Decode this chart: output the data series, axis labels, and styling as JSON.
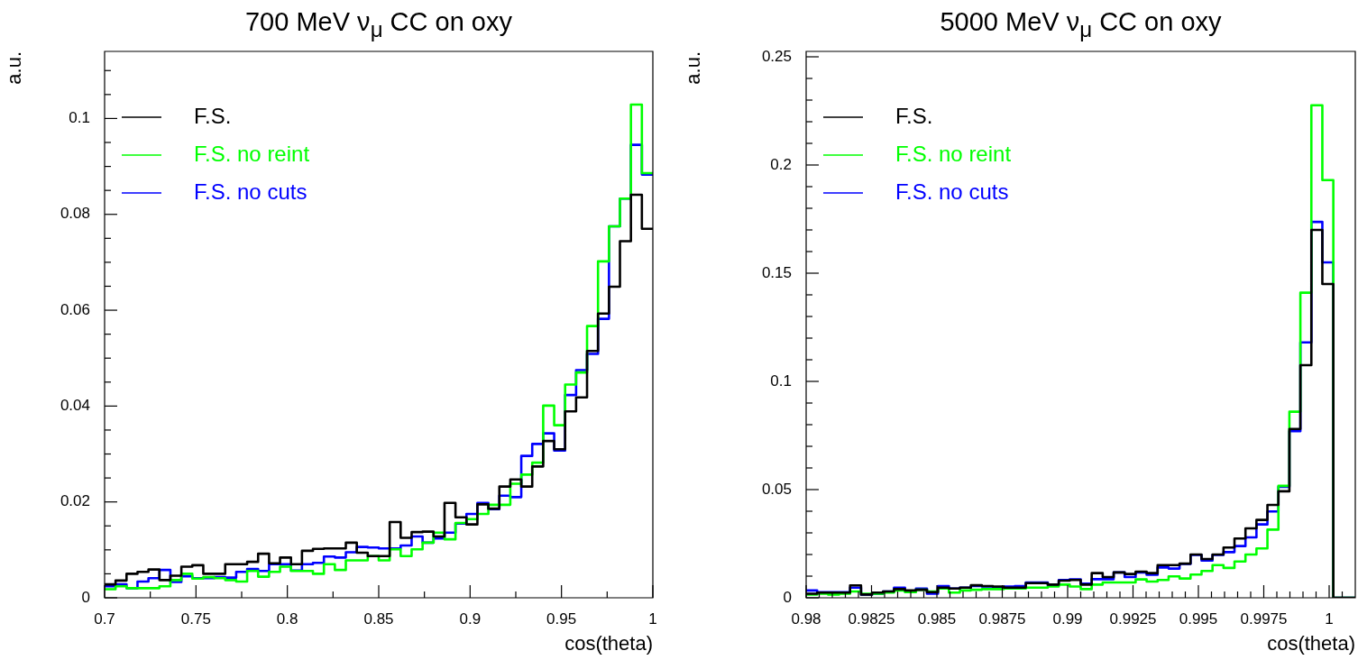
{
  "chart_data": [
    {
      "type": "histogram",
      "title": "700 MeV ν$_{μ}$ CC on oxy",
      "xlabel": "cos(theta)",
      "ylabel": "a.u.",
      "legend": "top left",
      "bins": [
        0.7,
        0.706,
        0.712,
        0.718,
        0.724,
        0.73,
        0.736,
        0.742,
        0.748,
        0.754,
        0.76,
        0.766,
        0.772,
        0.778,
        0.784,
        0.79,
        0.796,
        0.802,
        0.808,
        0.814,
        0.82,
        0.826,
        0.832,
        0.838,
        0.844,
        0.85,
        0.856,
        0.862,
        0.868,
        0.874,
        0.88,
        0.886,
        0.892,
        0.898,
        0.904,
        0.91,
        0.916,
        0.922,
        0.928,
        0.934,
        0.94,
        0.946,
        0.952,
        0.958,
        0.964,
        0.97,
        0.976,
        0.982,
        0.988,
        0.994,
        1
      ],
      "series": [
        {
          "name": "F.S.",
          "color": "#000000",
          "values": [
            0.0028,
            0.0036,
            0.005,
            0.0054,
            0.0059,
            0.0037,
            0.0046,
            0.0065,
            0.0068,
            0.005,
            0.005,
            0.007,
            0.007,
            0.0075,
            0.0092,
            0.0072,
            0.0084,
            0.007,
            0.0098,
            0.0102,
            0.0103,
            0.0103,
            0.0115,
            0.0094,
            0.0087,
            0.0087,
            0.0158,
            0.0125,
            0.0137,
            0.0138,
            0.0128,
            0.0198,
            0.0168,
            0.0153,
            0.0195,
            0.0186,
            0.0232,
            0.0247,
            0.0232,
            0.0274,
            0.0327,
            0.031,
            0.0389,
            0.0418,
            0.0515,
            0.0593,
            0.0649,
            0.0744,
            0.0841,
            0.077
          ]
        },
        {
          "name": "F.S. no reint",
          "color": "#00ff00",
          "values": [
            0.0018,
            0.0024,
            0.002,
            0.002,
            0.002,
            0.0024,
            0.0037,
            0.005,
            0.004,
            0.0043,
            0.0041,
            0.0037,
            0.0034,
            0.0056,
            0.0044,
            0.0054,
            0.0065,
            0.0056,
            0.0056,
            0.005,
            0.007,
            0.0058,
            0.0078,
            0.0078,
            0.0087,
            0.0078,
            0.0101,
            0.0087,
            0.0101,
            0.0115,
            0.0136,
            0.0122,
            0.0156,
            0.0164,
            0.0175,
            0.0194,
            0.0194,
            0.0238,
            0.0257,
            0.0282,
            0.0401,
            0.036,
            0.0445,
            0.047,
            0.0567,
            0.0702,
            0.0775,
            0.0833,
            0.1029,
            0.0886
          ]
        },
        {
          "name": "F.S. no cuts",
          "color": "#0000ff",
          "values": [
            0.0024,
            0.0028,
            0.002,
            0.0034,
            0.0041,
            0.0058,
            0.0033,
            0.0045,
            0.0041,
            0.0041,
            0.0043,
            0.0042,
            0.0054,
            0.006,
            0.0056,
            0.007,
            0.007,
            0.0057,
            0.007,
            0.0073,
            0.0086,
            0.0084,
            0.0095,
            0.0106,
            0.0105,
            0.0103,
            0.0103,
            0.0109,
            0.0128,
            0.0115,
            0.0124,
            0.0136,
            0.0155,
            0.0175,
            0.0198,
            0.0185,
            0.0213,
            0.021,
            0.0296,
            0.0321,
            0.0343,
            0.0307,
            0.0423,
            0.0475,
            0.0509,
            0.0582,
            0.0775,
            0.0833,
            0.0945,
            0.0883
          ]
        }
      ],
      "xlim": [
        0.7,
        1
      ],
      "ylim": [
        0,
        0.114
      ],
      "xticks": [
        0.7,
        {
          "value": 0.725,
          "label": null
        },
        0.75,
        {
          "value": 0.775,
          "label": null
        },
        0.8,
        {
          "value": 0.825,
          "label": null
        },
        0.85,
        {
          "value": 0.875,
          "label": null
        },
        0.9,
        {
          "value": 0.925,
          "label": null
        },
        0.95,
        {
          "value": 0.975,
          "label": null
        },
        1
      ],
      "yticks": [
        0,
        {
          "value": 0.005,
          "label": null
        },
        {
          "value": 0.01,
          "label": null
        },
        {
          "value": 0.015,
          "label": null
        },
        0.02,
        {
          "value": 0.025,
          "label": null
        },
        {
          "value": 0.03,
          "label": null
        },
        {
          "value": 0.035,
          "label": null
        },
        0.04,
        {
          "value": 0.045,
          "label": null
        },
        {
          "value": 0.05,
          "label": null
        },
        {
          "value": 0.055,
          "label": null
        },
        0.06,
        {
          "value": 0.065,
          "label": null
        },
        {
          "value": 0.07,
          "label": null
        },
        {
          "value": 0.075,
          "label": null
        },
        0.08,
        {
          "value": 0.085,
          "label": null
        },
        {
          "value": 0.09,
          "label": null
        },
        {
          "value": 0.095,
          "label": null
        },
        0.1,
        {
          "value": 0.105,
          "label": null
        },
        {
          "value": 0.11,
          "label": null
        }
      ]
    },
    {
      "type": "histogram",
      "title": "5000 MeV ν$_{μ}$ CC on oxy",
      "xlabel": "cos(theta)",
      "ylabel": "a.u.",
      "legend": "top left",
      "bins": [
        0.98,
        0.98042,
        0.98084,
        0.98126,
        0.98168,
        0.9821,
        0.98252,
        0.98294,
        0.98336,
        0.98378,
        0.9842,
        0.98462,
        0.98504,
        0.98546,
        0.98588,
        0.9863,
        0.98672,
        0.98714,
        0.98756,
        0.98798,
        0.9884,
        0.98882,
        0.98924,
        0.98966,
        0.99008,
        0.9905,
        0.99092,
        0.99134,
        0.99176,
        0.99218,
        0.9926,
        0.99302,
        0.99344,
        0.99386,
        0.99428,
        0.9947,
        0.99512,
        0.99554,
        0.99596,
        0.99638,
        0.9968,
        0.99722,
        0.99764,
        0.99806,
        0.99848,
        0.9989,
        0.99932,
        0.99974,
        1.00016,
        1.00058,
        1.001
      ],
      "series": [
        {
          "name": "F.S.",
          "color": "#000000",
          "values": [
            0.0019,
            0.0024,
            0.0024,
            0.0024,
            0.0057,
            0.0015,
            0.0024,
            0.0029,
            0.004,
            0.0034,
            0.0037,
            0.0026,
            0.0047,
            0.0043,
            0.0047,
            0.0058,
            0.0054,
            0.0052,
            0.0047,
            0.0047,
            0.0068,
            0.0068,
            0.0061,
            0.0079,
            0.0082,
            0.0061,
            0.0114,
            0.0096,
            0.0117,
            0.011,
            0.0121,
            0.0114,
            0.0151,
            0.0151,
            0.0158,
            0.02,
            0.0179,
            0.02,
            0.0232,
            0.0274,
            0.0321,
            0.036,
            0.0429,
            0.0492,
            0.078,
            0.1075,
            0.17,
            0.145,
            0,
            0
          ]
        },
        {
          "name": "F.S. no reint",
          "color": "#00ff00",
          "values": [
            0.0015,
            0.0019,
            0.0015,
            0.0019,
            0.0029,
            0.0019,
            0.0019,
            0.0024,
            0.0034,
            0.0026,
            0.0037,
            0.0029,
            0.0043,
            0.0024,
            0.0034,
            0.0037,
            0.004,
            0.004,
            0.0043,
            0.0043,
            0.0047,
            0.0047,
            0.0052,
            0.0061,
            0.0052,
            0.004,
            0.0061,
            0.0071,
            0.0071,
            0.0071,
            0.0085,
            0.0075,
            0.0082,
            0.0099,
            0.0089,
            0.0107,
            0.0124,
            0.0151,
            0.0138,
            0.0168,
            0.02,
            0.0228,
            0.0315,
            0.0517,
            0.086,
            0.141,
            0.2276,
            0.193,
            0,
            0
          ]
        },
        {
          "name": "F.S. no cuts",
          "color": "#0000ff",
          "values": [
            0.0034,
            0.0026,
            0.0026,
            0.0026,
            0.0047,
            0.0015,
            0.0019,
            0.0029,
            0.0047,
            0.0029,
            0.0043,
            0.0019,
            0.0054,
            0.0043,
            0.0047,
            0.0054,
            0.0052,
            0.0047,
            0.0052,
            0.0054,
            0.0071,
            0.0071,
            0.0057,
            0.0082,
            0.0085,
            0.0065,
            0.0086,
            0.0086,
            0.0117,
            0.0096,
            0.0117,
            0.0106,
            0.014,
            0.0135,
            0.0156,
            0.0198,
            0.0172,
            0.0198,
            0.0211,
            0.0239,
            0.0279,
            0.0339,
            0.0399,
            0.0513,
            0.077,
            0.118,
            0.1737,
            0.155,
            0,
            0
          ]
        }
      ],
      "xlim": [
        0.98,
        1.001
      ],
      "ylim": [
        0,
        0.2525
      ],
      "xticks": [
        0.98,
        {
          "value": 0.9805,
          "label": null
        },
        {
          "value": 0.981,
          "label": null
        },
        {
          "value": 0.9815,
          "label": null
        },
        {
          "value": 0.982,
          "label": null
        },
        0.9825,
        {
          "value": 0.983,
          "label": null
        },
        {
          "value": 0.9835,
          "label": null
        },
        {
          "value": 0.984,
          "label": null
        },
        {
          "value": 0.9845,
          "label": null
        },
        0.985,
        {
          "value": 0.9855,
          "label": null
        },
        {
          "value": 0.986,
          "label": null
        },
        {
          "value": 0.9865,
          "label": null
        },
        {
          "value": 0.987,
          "label": null
        },
        0.9875,
        {
          "value": 0.988,
          "label": null
        },
        {
          "value": 0.9885,
          "label": null
        },
        {
          "value": 0.989,
          "label": null
        },
        {
          "value": 0.9895,
          "label": null
        },
        0.99,
        {
          "value": 0.9905,
          "label": null
        },
        {
          "value": 0.991,
          "label": null
        },
        {
          "value": 0.9915,
          "label": null
        },
        {
          "value": 0.992,
          "label": null
        },
        0.9925,
        {
          "value": 0.993,
          "label": null
        },
        {
          "value": 0.9935,
          "label": null
        },
        {
          "value": 0.994,
          "label": null
        },
        {
          "value": 0.9945,
          "label": null
        },
        0.995,
        {
          "value": 0.9955,
          "label": null
        },
        {
          "value": 0.996,
          "label": null
        },
        {
          "value": 0.9965,
          "label": null
        },
        {
          "value": 0.997,
          "label": null
        },
        0.9975,
        {
          "value": 0.998,
          "label": null
        },
        {
          "value": 0.9985,
          "label": null
        },
        {
          "value": 0.999,
          "label": null
        },
        {
          "value": 0.9995,
          "label": null
        },
        1,
        {
          "value": 1.0005,
          "label": null
        }
      ],
      "yticks": [
        0,
        {
          "value": 0.01,
          "label": null
        },
        {
          "value": 0.02,
          "label": null
        },
        {
          "value": 0.03,
          "label": null
        },
        {
          "value": 0.04,
          "label": null
        },
        0.05,
        {
          "value": 0.06,
          "label": null
        },
        {
          "value": 0.07,
          "label": null
        },
        {
          "value": 0.08,
          "label": null
        },
        {
          "value": 0.09,
          "label": null
        },
        0.1,
        {
          "value": 0.11,
          "label": null
        },
        {
          "value": 0.12,
          "label": null
        },
        {
          "value": 0.13,
          "label": null
        },
        {
          "value": 0.14,
          "label": null
        },
        0.15,
        {
          "value": 0.16,
          "label": null
        },
        {
          "value": 0.17,
          "label": null
        },
        {
          "value": 0.18,
          "label": null
        },
        {
          "value": 0.19,
          "label": null
        },
        0.2,
        {
          "value": 0.21,
          "label": null
        },
        {
          "value": 0.22,
          "label": null
        },
        {
          "value": 0.23,
          "label": null
        },
        {
          "value": 0.24,
          "label": null
        },
        0.25
      ]
    }
  ]
}
